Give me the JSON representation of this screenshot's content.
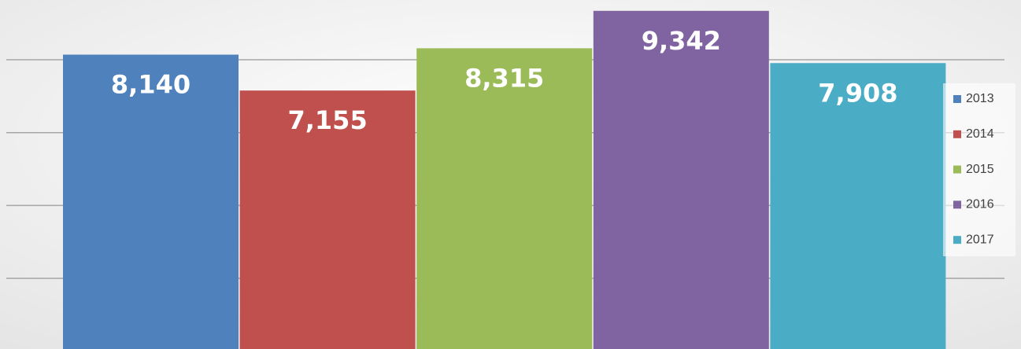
{
  "chart_data": {
    "type": "bar",
    "series": [
      {
        "name": "2013",
        "color": "#4f81bd",
        "values": [
          8140
        ],
        "value_labels": [
          "8,140"
        ]
      },
      {
        "name": "2014",
        "color": "#c0504d",
        "values": [
          7155
        ],
        "value_labels": [
          "7,155"
        ]
      },
      {
        "name": "2015",
        "color": "#9bbb59",
        "values": [
          8315
        ],
        "value_labels": [
          "8,315"
        ]
      },
      {
        "name": "2016",
        "color": "#8064a2",
        "values": [
          9342
        ],
        "value_labels": [
          "9,342"
        ]
      },
      {
        "name": "2017",
        "color": "#4bacc6",
        "values": [
          7908
        ],
        "value_labels": [
          "7,908"
        ]
      }
    ],
    "ylim": [
      0,
      10000
    ],
    "yticks": [
      2000,
      4000,
      6000,
      8000
    ],
    "grid": true,
    "legend": "right"
  }
}
